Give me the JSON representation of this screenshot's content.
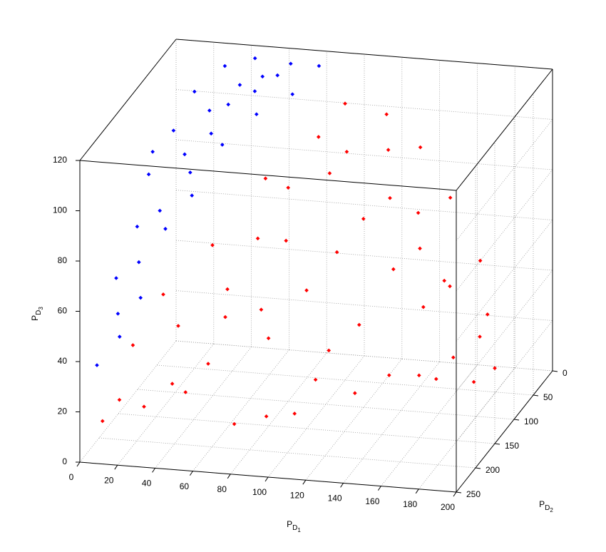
{
  "chart_data": {
    "type": "scatter3d",
    "xlabel": {
      "base": "P",
      "sub": "D",
      "subsub": "1"
    },
    "ylabel": {
      "base": "P",
      "sub": "D",
      "subsub": "2"
    },
    "zlabel": {
      "base": "P",
      "sub": "D",
      "subsub": "3"
    },
    "xlim": [
      0,
      200
    ],
    "ylim": [
      0,
      250
    ],
    "zlim": [
      0,
      120
    ],
    "xticks": [
      0,
      20,
      40,
      60,
      80,
      100,
      120,
      140,
      160,
      180,
      200
    ],
    "yticks": [
      0,
      50,
      100,
      150,
      200,
      250
    ],
    "zticks": [
      0,
      20,
      40,
      60,
      80,
      100,
      120
    ],
    "grid": true,
    "series": [
      {
        "color": "#ff0000",
        "x": [
          10,
          30,
          50,
          80,
          110,
          140,
          170,
          195,
          200,
          190,
          180,
          160,
          140,
          120,
          100,
          90,
          80,
          70,
          60,
          40,
          20,
          30,
          50,
          70,
          100,
          120,
          140,
          160,
          180,
          150,
          120,
          90,
          60,
          100,
          130,
          110,
          130,
          150,
          170,
          190,
          80,
          45,
          65,
          85,
          105,
          125,
          145,
          165,
          115,
          175,
          20,
          95
        ],
        "y": [
          240,
          230,
          220,
          240,
          230,
          220,
          200,
          180,
          150,
          120,
          90,
          70,
          50,
          40,
          50,
          70,
          100,
          130,
          160,
          190,
          210,
          180,
          150,
          110,
          90,
          100,
          120,
          140,
          160,
          180,
          190,
          200,
          210,
          150,
          160,
          120,
          80,
          100,
          120,
          140,
          170,
          230,
          190,
          130,
          70,
          60,
          80,
          110,
          200,
          180,
          245,
          230
        ],
        "z": [
          15,
          20,
          25,
          18,
          22,
          30,
          35,
          30,
          30,
          45,
          60,
          80,
          95,
          105,
          110,
          100,
          85,
          70,
          55,
          45,
          40,
          55,
          70,
          90,
          90,
          75,
          60,
          50,
          35,
          30,
          40,
          45,
          35,
          55,
          45,
          65,
          80,
          65,
          55,
          40,
          50,
          30,
          50,
          70,
          95,
          95,
          75,
          55,
          30,
          30,
          25,
          20
        ]
      },
      {
        "color": "#0000ff",
        "x": [
          5,
          10,
          15,
          20,
          10,
          25,
          15,
          20,
          30,
          40,
          50,
          60,
          70,
          80,
          55,
          35,
          30,
          45,
          25,
          35,
          5,
          10,
          20,
          40,
          65,
          15,
          50,
          30,
          8,
          45
        ],
        "y": [
          230,
          200,
          170,
          140,
          120,
          100,
          80,
          50,
          20,
          30,
          20,
          30,
          40,
          20,
          60,
          80,
          110,
          100,
          150,
          130,
          180,
          150,
          190,
          60,
          20,
          220,
          40,
          60,
          100,
          15
        ],
        "z": [
          35,
          50,
          65,
          80,
          90,
          95,
          100,
          110,
          115,
          110,
          112,
          115,
          110,
          118,
          105,
          100,
          90,
          100,
          75,
          85,
          60,
          75,
          55,
          108,
          118,
          45,
          110,
          105,
          95,
          118
        ]
      }
    ]
  }
}
